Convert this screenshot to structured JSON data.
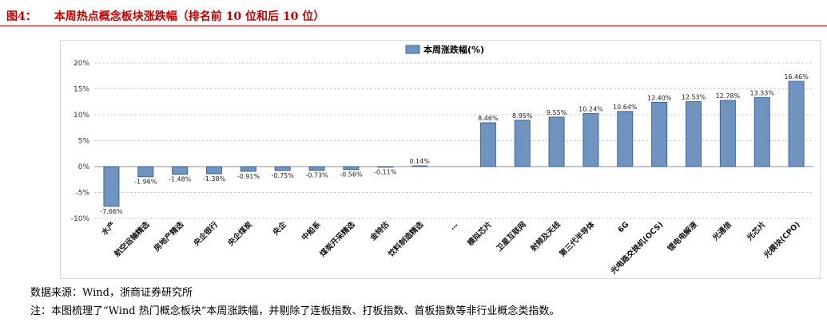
{
  "figure": {
    "label": "图4：",
    "title": "本周热点概念板块涨跌幅（排名前 10 位和后 10 位）"
  },
  "chart_data": {
    "type": "bar",
    "legend": "本周涨跌幅(%)",
    "categories": [
      "水产",
      "航空运输精选",
      "房地产精选",
      "央企银行",
      "央企煤炭",
      "央企",
      "中船系",
      "煤炭开采精选",
      "金特估",
      "饮料制造精选",
      "…",
      "模拟芯片",
      "卫星互联网",
      "射频及天线",
      "第三代半导体",
      "6G",
      "光电路交换机(OCS)",
      "锂电电解液",
      "光通信",
      "光芯片",
      "光模块(CPO)"
    ],
    "values": [
      -7.66,
      -1.96,
      -1.48,
      -1.38,
      -0.91,
      -0.75,
      -0.73,
      -0.56,
      -0.11,
      0.14,
      null,
      8.46,
      8.95,
      9.55,
      10.24,
      10.64,
      12.4,
      12.53,
      12.78,
      13.33,
      16.46
    ],
    "value_labels": [
      "-7.66%",
      "-1.96%",
      "-1.48%",
      "-1.38%",
      "-0.91%",
      "-0.75%",
      "-0.73%",
      "-0.56%",
      "-0.11%",
      "0.14%",
      "",
      "8.46%",
      "8.95%",
      "9.55%",
      "10.24%",
      "10.64%",
      "12.40%",
      "12.53%",
      "12.78%",
      "13.33%",
      "16.46%"
    ],
    "ylim": [
      -10,
      20
    ],
    "ytick_step": 5,
    "ytick_labels": [
      "-10%",
      "-5%",
      "0%",
      "5%",
      "10%",
      "15%",
      "20%"
    ],
    "bar_color": "#7193bf",
    "bar_border": "#3e6296",
    "grid": true,
    "legend_position": "top-center",
    "xlabel": "",
    "ylabel": ""
  },
  "notes": {
    "source": "数据来源：Wind，浙商证券研究所",
    "footnote": "注：本图梳理了“Wind 热门概念板块”本周涨跌幅，并剔除了连板指数、打板指数、首板指数等非行业概念类指数。"
  }
}
